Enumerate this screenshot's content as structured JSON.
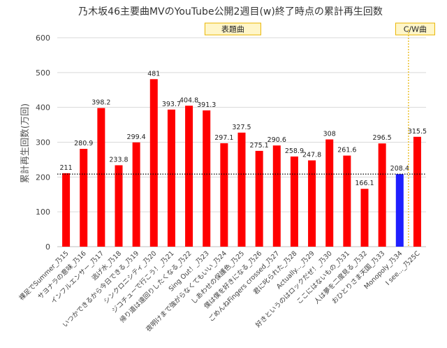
{
  "chart_data": {
    "type": "bar",
    "title": "乃木坂46主要曲MVのYouTube公開2週目(w)終了時点の累計再生回数",
    "xlabel": "",
    "ylabel": "累計再生回数(万回)",
    "ylim": [
      0,
      600
    ],
    "yticks": [
      0,
      100,
      200,
      300,
      400,
      500,
      600
    ],
    "grid": true,
    "categories": [
      "裸足でSummer_乃15",
      "サヨナラの意味_乃16",
      "インフルエンサー_乃17",
      "逃げ水_乃18",
      "いつかできるから今日できる_乃19",
      "シンクロニシティ_乃20",
      "ジコチューで行こう！_乃21",
      "帰り道は遠回りしたくなる_乃22",
      "Sing Out！_乃23",
      "夜明けまで強がらなくてもいい_乃24",
      "しあわせの保護色_乃25",
      "僕は僕を好きになる_乃26",
      "ごめんねFingers crossed_乃27",
      "君に叱られた_乃28",
      "Actually..._乃29",
      "好きというのはロックだぜ！_乃30",
      "ここにはないもの_乃31",
      "人は夢を二度見る_乃32",
      "おひとりさま天国_乃33",
      "Monopoly_乃34",
      "I see..._乃25C"
    ],
    "values": [
      211,
      280.9,
      398.2,
      233.8,
      299.4,
      481,
      393.7,
      404.8,
      391.3,
      297.1,
      327.5,
      275.1,
      290.6,
      258.9,
      247.8,
      308,
      261.6,
      166.1,
      296.5,
      208.4,
      315.5
    ],
    "bar_colors": [
      "#ff0000",
      "#ff0000",
      "#ff0000",
      "#ff0000",
      "#ff0000",
      "#ff0000",
      "#ff0000",
      "#ff0000",
      "#ff0000",
      "#ff0000",
      "#ff0000",
      "#ff0000",
      "#ff0000",
      "#ff0000",
      "#ff0000",
      "#ff0000",
      "#ff0000",
      "#ff0000",
      "#ff0000",
      "#1f1fff",
      "#ff0000"
    ],
    "reference_line": {
      "value": 208.4,
      "style": "dotted"
    },
    "groups": [
      {
        "label": "表題曲",
        "from_index": 0,
        "to_index": 19
      },
      {
        "label": "C/W曲",
        "from_index": 20,
        "to_index": 20
      }
    ],
    "divider_after_index": 19
  },
  "colors": {
    "bar": "#ff0000",
    "highlight_bar": "#1f1fff",
    "box_fill": "#fff6c9",
    "box_border": "#e8b400",
    "divider": "#e8b400",
    "grid": "#d9d9d9"
  }
}
